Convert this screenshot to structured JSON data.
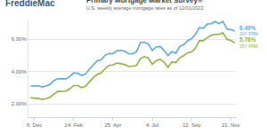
{
  "chart_data": {
    "type": "line",
    "logo": "FreddieMac",
    "title": "Primary Mortgage Market Survey®",
    "subtitle": "U.S. weekly average mortgage rates as of 12/01/2022",
    "categories": [
      null,
      "6. Dec",
      null,
      null,
      null,
      null,
      null,
      null,
      null,
      null,
      null,
      "14. Feb",
      null,
      null,
      null,
      null,
      null,
      null,
      null,
      null,
      null,
      "25. Apr",
      null,
      null,
      null,
      null,
      null,
      null,
      null,
      null,
      null,
      "4. Jul",
      null,
      null,
      null,
      null,
      null,
      null,
      null,
      null,
      null,
      "12. Sep",
      null,
      null,
      null,
      null,
      null,
      null,
      null,
      null,
      null,
      "21. Nov",
      null
    ],
    "series": [
      {
        "name": "30Y FRM",
        "color": "#5aa9e6",
        "values": [
          3.11,
          3.1,
          3.12,
          3.05,
          3.11,
          3.22,
          3.45,
          3.56,
          3.55,
          3.55,
          3.69,
          3.92,
          3.89,
          3.76,
          3.85,
          4.16,
          4.42,
          4.67,
          4.72,
          5.0,
          5.11,
          5.1,
          5.27,
          5.3,
          5.25,
          5.1,
          5.09,
          5.23,
          5.78,
          5.81,
          5.7,
          5.3,
          5.51,
          5.54,
          5.3,
          4.99,
          5.22,
          5.13,
          5.55,
          5.66,
          5.89,
          6.02,
          6.29,
          6.7,
          6.66,
          6.92,
          6.94,
          7.08,
          6.95,
          7.08,
          6.61,
          6.58,
          6.49
        ],
        "value_labels": [
          null,
          null,
          null,
          null,
          null,
          null,
          null,
          null,
          null,
          null,
          null,
          null,
          null,
          null,
          null,
          null,
          null,
          null,
          null,
          null,
          null,
          null,
          null,
          null,
          null,
          null,
          null,
          null,
          null,
          null,
          null,
          null,
          null,
          null,
          null,
          null,
          null,
          null,
          null,
          null,
          null,
          null,
          null,
          null,
          null,
          null,
          null,
          null,
          null,
          null,
          null,
          null,
          "6.49%"
        ]
      },
      {
        "name": "15Y FRM",
        "color": "#8db63c",
        "values": [
          2.39,
          2.38,
          2.34,
          2.3,
          2.33,
          2.43,
          2.62,
          2.79,
          2.77,
          2.8,
          2.93,
          3.14,
          3.14,
          3.01,
          3.09,
          3.39,
          3.63,
          3.83,
          3.91,
          4.17,
          4.38,
          4.4,
          4.52,
          4.48,
          4.43,
          4.31,
          4.32,
          4.38,
          4.81,
          4.92,
          4.83,
          4.45,
          4.67,
          4.75,
          4.58,
          4.26,
          4.59,
          4.55,
          4.85,
          4.98,
          5.16,
          5.21,
          5.44,
          5.9,
          5.9,
          6.09,
          6.23,
          6.29,
          6.29,
          6.38,
          5.98,
          5.9,
          5.76
        ],
        "value_labels": [
          null,
          null,
          null,
          null,
          null,
          null,
          null,
          null,
          null,
          null,
          null,
          null,
          null,
          null,
          null,
          null,
          null,
          null,
          null,
          null,
          null,
          null,
          null,
          null,
          null,
          null,
          null,
          null,
          null,
          null,
          null,
          null,
          null,
          null,
          null,
          null,
          null,
          null,
          null,
          null,
          null,
          null,
          null,
          null,
          null,
          null,
          null,
          null,
          null,
          null,
          null,
          null,
          "5.76%"
        ]
      }
    ],
    "ylim": [
      1.2,
      7.2
    ],
    "yticks": [
      {
        "value": 2,
        "label": "2.00%"
      },
      {
        "value": 4,
        "label": "4.00%"
      },
      {
        "value": 6,
        "label": "6.00%"
      }
    ],
    "grid": true,
    "data_labels": true
  }
}
